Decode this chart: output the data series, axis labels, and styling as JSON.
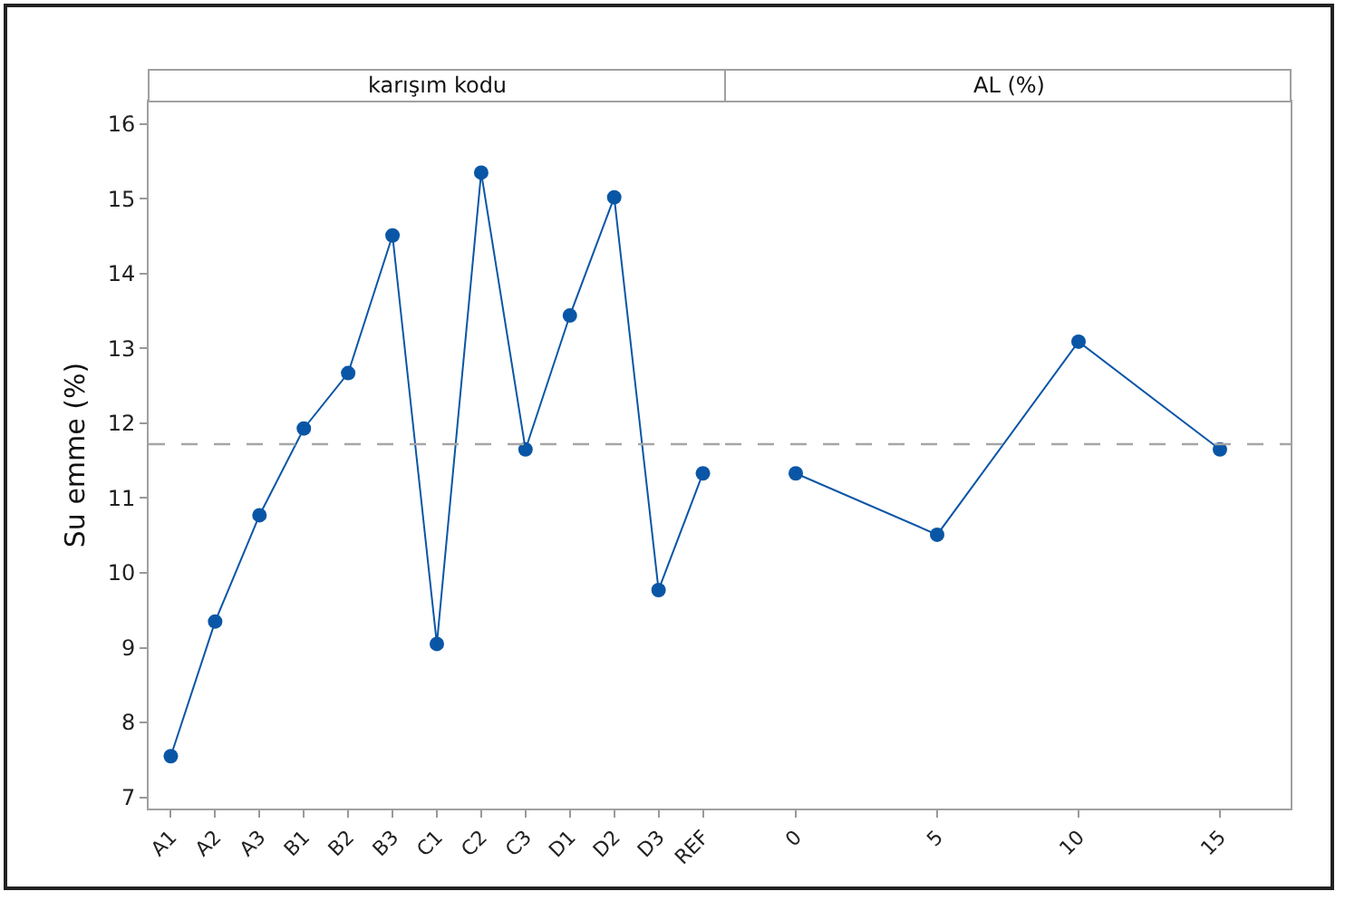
{
  "chart_data": [
    {
      "type": "line",
      "title": "karışım kodu",
      "ylabel": "Su emme (%)",
      "categories": [
        "A1",
        "A2",
        "A3",
        "B1",
        "B2",
        "B3",
        "C1",
        "C2",
        "C3",
        "D1",
        "D2",
        "D3",
        "REF"
      ],
      "values": [
        7.55,
        9.35,
        10.77,
        11.93,
        12.67,
        14.51,
        9.05,
        15.35,
        11.65,
        13.44,
        15.02,
        9.77,
        11.33
      ],
      "color": "#0a56a6",
      "marker": "circle",
      "ylim": [
        6.85,
        16.3
      ],
      "yticks": [
        7,
        8,
        9,
        10,
        11,
        12,
        13,
        14,
        15,
        16
      ],
      "ref_lines": [
        {
          "axis": "y",
          "value": 11.72,
          "color": "#a6a6a6",
          "line_style": "dashed"
        }
      ]
    },
    {
      "type": "line",
      "title": "AL (%)",
      "categories": [
        "0",
        "5",
        "10",
        "15"
      ],
      "values": [
        11.33,
        10.51,
        13.09,
        11.65
      ],
      "color": "#0a56a6",
      "marker": "circle",
      "ylim": [
        6.85,
        16.3
      ],
      "yticks": [
        7,
        8,
        9,
        10,
        11,
        12,
        13,
        14,
        15,
        16
      ],
      "tick_labels": "x",
      "ref_lines": [
        {
          "axis": "y",
          "value": 11.72,
          "color": "#a6a6a6",
          "line_style": "dashed"
        }
      ]
    }
  ]
}
